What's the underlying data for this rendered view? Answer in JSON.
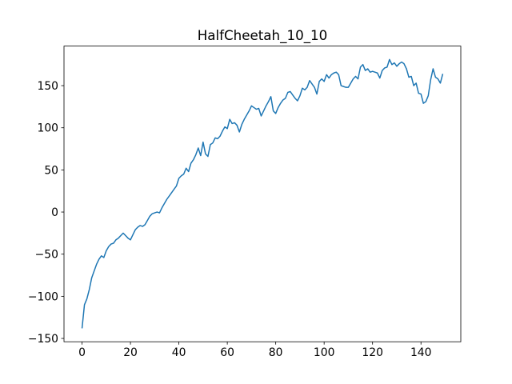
{
  "chart_data": {
    "type": "line",
    "title": "HalfCheetah_10_10",
    "color": "#1f77b4",
    "x": [
      0,
      1,
      2,
      3,
      4,
      5,
      6,
      7,
      8,
      9,
      10,
      11,
      12,
      13,
      14,
      15,
      16,
      17,
      18,
      19,
      20,
      21,
      22,
      23,
      24,
      25,
      26,
      27,
      28,
      29,
      30,
      31,
      32,
      33,
      34,
      35,
      36,
      37,
      38,
      39,
      40,
      41,
      42,
      43,
      44,
      45,
      46,
      47,
      48,
      49,
      50,
      51,
      52,
      53,
      54,
      55,
      56,
      57,
      58,
      59,
      60,
      61,
      62,
      63,
      64,
      65,
      66,
      67,
      68,
      69,
      70,
      71,
      72,
      73,
      74,
      75,
      76,
      77,
      78,
      79,
      80,
      81,
      82,
      83,
      84,
      85,
      86,
      87,
      88,
      89,
      90,
      91,
      92,
      93,
      94,
      95,
      96,
      97,
      98,
      99,
      100,
      101,
      102,
      103,
      104,
      105,
      106,
      107,
      108,
      109,
      110,
      111,
      112,
      113,
      114,
      115,
      116,
      117,
      118,
      119,
      120,
      121,
      122,
      123,
      124,
      125,
      126,
      127,
      128,
      129,
      130,
      131,
      132,
      133,
      134,
      135,
      136,
      137,
      138,
      139,
      140,
      141,
      142,
      143,
      144,
      145,
      146,
      147,
      148,
      149
    ],
    "values": [
      -138,
      -110,
      -103,
      -92,
      -78,
      -70,
      -62,
      -56,
      -52,
      -54,
      -46,
      -41,
      -38,
      -37,
      -33,
      -31,
      -28,
      -25,
      -28,
      -31,
      -33,
      -27,
      -21,
      -18,
      -16,
      -17,
      -15,
      -10,
      -5,
      -2,
      -1,
      0,
      -1,
      5,
      10,
      15,
      19,
      23,
      27,
      31,
      40,
      43,
      45,
      52,
      48,
      58,
      62,
      68,
      76,
      67,
      83,
      69,
      66,
      80,
      82,
      88,
      87,
      90,
      96,
      101,
      99,
      110,
      105,
      106,
      103,
      95,
      104,
      110,
      115,
      120,
      126,
      124,
      122,
      123,
      114,
      120,
      126,
      131,
      137,
      120,
      117,
      124,
      129,
      133,
      135,
      142,
      143,
      139,
      135,
      132,
      138,
      147,
      145,
      148,
      156,
      152,
      148,
      140,
      155,
      158,
      155,
      163,
      159,
      163,
      165,
      166,
      163,
      150,
      149,
      148,
      148,
      153,
      158,
      161,
      158,
      172,
      175,
      168,
      170,
      166,
      167,
      166,
      165,
      159,
      168,
      171,
      172,
      181,
      175,
      177,
      173,
      176,
      178,
      176,
      170,
      160,
      161,
      150,
      153,
      141,
      140,
      129,
      131,
      138,
      157,
      170,
      160,
      158,
      153,
      164
    ],
    "xlim": [
      -7.45,
      156.45
    ],
    "xticks": [
      0,
      20,
      40,
      60,
      80,
      100,
      120,
      140
    ],
    "ylim": [
      -153.95,
      196.95
    ],
    "yticks": [
      {
        "value": -150,
        "label": "−150"
      },
      {
        "value": -100,
        "label": "−100"
      },
      {
        "value": -50,
        "label": "−50"
      },
      0,
      50,
      100,
      150
    ],
    "grid": false
  }
}
